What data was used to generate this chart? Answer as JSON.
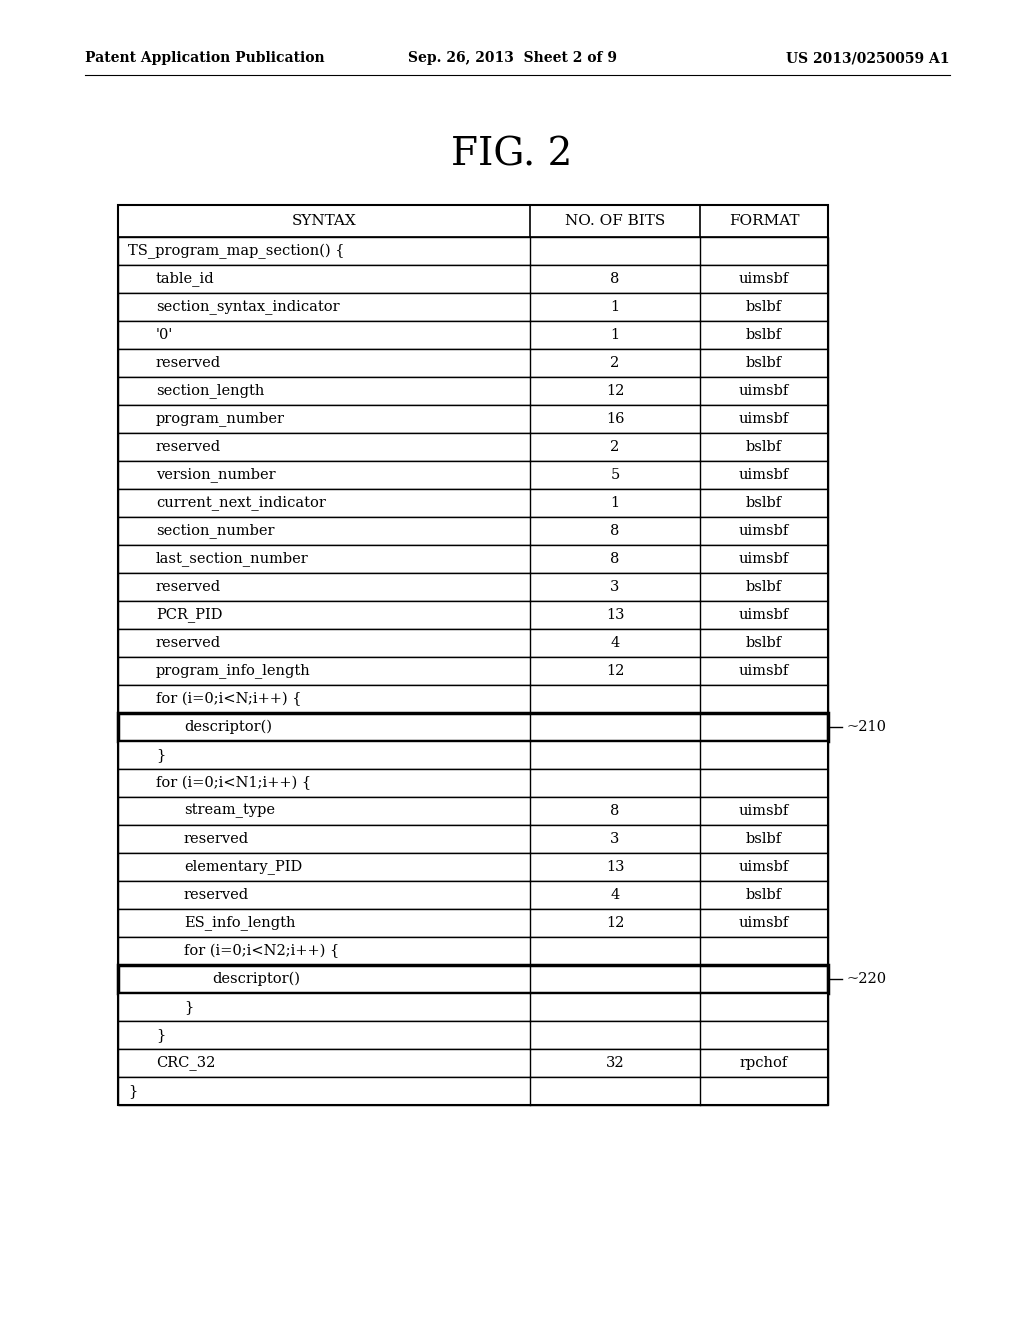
{
  "header_left": "Patent Application Publication",
  "header_center": "Sep. 26, 2013  Sheet 2 of 9",
  "header_right": "US 2013/0250059 A1",
  "figure_title": "FIG. 2",
  "col_headers": [
    "SYNTAX",
    "NO. OF BITS",
    "FORMAT"
  ],
  "rows": [
    {
      "syntax": "TS_program_map_section() {",
      "bits": "",
      "format": "",
      "indent": 0,
      "bold_border": false
    },
    {
      "syntax": "table_id",
      "bits": "8",
      "format": "uimsbf",
      "indent": 1,
      "bold_border": false
    },
    {
      "syntax": "section_syntax_indicator",
      "bits": "1",
      "format": "bslbf",
      "indent": 1,
      "bold_border": false
    },
    {
      "syntax": "'0'",
      "bits": "1",
      "format": "bslbf",
      "indent": 1,
      "bold_border": false
    },
    {
      "syntax": "reserved",
      "bits": "2",
      "format": "bslbf",
      "indent": 1,
      "bold_border": false
    },
    {
      "syntax": "section_length",
      "bits": "12",
      "format": "uimsbf",
      "indent": 1,
      "bold_border": false
    },
    {
      "syntax": "program_number",
      "bits": "16",
      "format": "uimsbf",
      "indent": 1,
      "bold_border": false
    },
    {
      "syntax": "reserved",
      "bits": "2",
      "format": "bslbf",
      "indent": 1,
      "bold_border": false
    },
    {
      "syntax": "version_number",
      "bits": "5",
      "format": "uimsbf",
      "indent": 1,
      "bold_border": false
    },
    {
      "syntax": "current_next_indicator",
      "bits": "1",
      "format": "bslbf",
      "indent": 1,
      "bold_border": false
    },
    {
      "syntax": "section_number",
      "bits": "8",
      "format": "uimsbf",
      "indent": 1,
      "bold_border": false
    },
    {
      "syntax": "last_section_number",
      "bits": "8",
      "format": "uimsbf",
      "indent": 1,
      "bold_border": false
    },
    {
      "syntax": "reserved",
      "bits": "3",
      "format": "bslbf",
      "indent": 1,
      "bold_border": false
    },
    {
      "syntax": "PCR_PID",
      "bits": "13",
      "format": "uimsbf",
      "indent": 1,
      "bold_border": false
    },
    {
      "syntax": "reserved",
      "bits": "4",
      "format": "bslbf",
      "indent": 1,
      "bold_border": false
    },
    {
      "syntax": "program_info_length",
      "bits": "12",
      "format": "uimsbf",
      "indent": 1,
      "bold_border": false
    },
    {
      "syntax": "for (i=0;i<N;i++) {",
      "bits": "",
      "format": "",
      "indent": 1,
      "bold_border": false
    },
    {
      "syntax": "descriptor()",
      "bits": "",
      "format": "",
      "indent": 2,
      "bold_border": true,
      "label": "210"
    },
    {
      "syntax": "}",
      "bits": "",
      "format": "",
      "indent": 1,
      "bold_border": false
    },
    {
      "syntax": "for (i=0;i<N1;i++) {",
      "bits": "",
      "format": "",
      "indent": 1,
      "bold_border": false
    },
    {
      "syntax": "stream_type",
      "bits": "8",
      "format": "uimsbf",
      "indent": 2,
      "bold_border": false
    },
    {
      "syntax": "reserved",
      "bits": "3",
      "format": "bslbf",
      "indent": 2,
      "bold_border": false
    },
    {
      "syntax": "elementary_PID",
      "bits": "13",
      "format": "uimsbf",
      "indent": 2,
      "bold_border": false
    },
    {
      "syntax": "reserved",
      "bits": "4",
      "format": "bslbf",
      "indent": 2,
      "bold_border": false
    },
    {
      "syntax": "ES_info_length",
      "bits": "12",
      "format": "uimsbf",
      "indent": 2,
      "bold_border": false
    },
    {
      "syntax": "for (i=0;i<N2;i++) {",
      "bits": "",
      "format": "",
      "indent": 2,
      "bold_border": false
    },
    {
      "syntax": "descriptor()",
      "bits": "",
      "format": "",
      "indent": 3,
      "bold_border": true,
      "label": "220"
    },
    {
      "syntax": "}",
      "bits": "",
      "format": "",
      "indent": 2,
      "bold_border": false
    },
    {
      "syntax": "}",
      "bits": "",
      "format": "",
      "indent": 1,
      "bold_border": false
    },
    {
      "syntax": "CRC_32",
      "bits": "32",
      "format": "rpchof",
      "indent": 1,
      "bold_border": false
    },
    {
      "syntax": "}",
      "bits": "",
      "format": "",
      "indent": 0,
      "bold_border": false
    }
  ],
  "background_color": "#ffffff",
  "text_color": "#000000"
}
